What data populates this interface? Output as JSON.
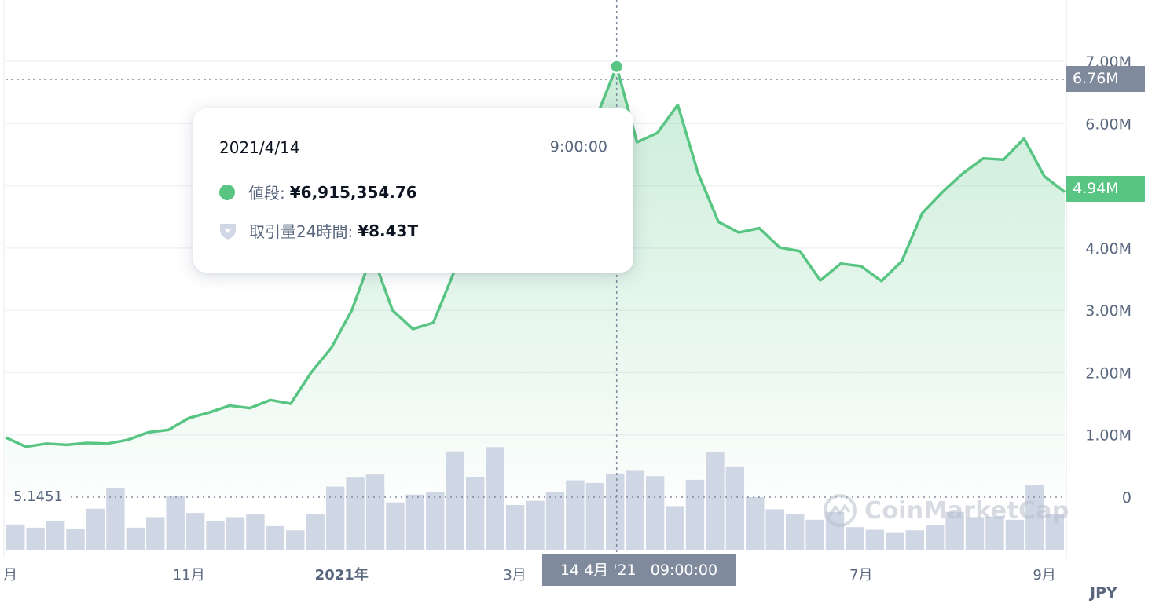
{
  "chart_data": {
    "type": "area",
    "currency": "JPY",
    "y_axis_ticks": [
      "0",
      "1.00M",
      "2.00M",
      "3.00M",
      "4.00M",
      "5.00M",
      "6.00M",
      "7.00M"
    ],
    "ylim": [
      0,
      7300000
    ],
    "x_axis_ticks": [
      {
        "label": "月",
        "bold": false,
        "x": 0
      },
      {
        "label": "11月",
        "bold": false,
        "x": 9
      },
      {
        "label": "2021年",
        "bold": false,
        "x": 16.5
      },
      {
        "label": "3月",
        "bold": false,
        "x": 25
      },
      {
        "label": "7月",
        "bold": false,
        "x": 42
      },
      {
        "label": "9月",
        "bold": false,
        "x": 51
      }
    ],
    "price_series": {
      "name": "値段",
      "x": [
        0,
        1,
        2,
        3,
        4,
        5,
        6,
        7,
        8,
        9,
        10,
        11,
        12,
        13,
        14,
        15,
        16,
        17,
        18,
        19,
        20,
        21,
        22,
        23,
        24,
        25,
        26,
        27,
        28,
        29,
        30,
        31,
        32,
        33,
        34,
        35,
        36,
        37,
        38,
        39,
        40,
        41,
        42,
        43,
        44,
        45,
        46,
        47,
        48,
        49,
        50,
        51,
        52
      ],
      "values": [
        960000,
        810000,
        860000,
        840000,
        870000,
        860000,
        920000,
        1040000,
        1080000,
        1270000,
        1360000,
        1470000,
        1430000,
        1560000,
        1500000,
        2000000,
        2400000,
        3000000,
        3900000,
        3000000,
        2700000,
        2800000,
        3600000,
        4300000,
        5200000,
        5300000,
        5200000,
        5400000,
        6200000,
        6100000,
        6915354,
        5700000,
        5850000,
        6300000,
        5200000,
        4420000,
        4250000,
        4320000,
        4010000,
        3950000,
        3480000,
        3750000,
        3710000,
        3470000,
        3790000,
        4560000,
        4900000,
        5200000,
        5440000,
        5420000,
        5760000,
        5150000,
        4900000
      ],
      "color": "#58c583"
    },
    "volume_series": {
      "name": "取引量24時間",
      "values": [
        0.48,
        0.42,
        0.55,
        0.4,
        0.78,
        1.17,
        0.42,
        0.62,
        1.02,
        0.7,
        0.55,
        0.62,
        0.68,
        0.45,
        0.37,
        0.68,
        1.2,
        1.37,
        1.43,
        0.9,
        1.05,
        1.1,
        1.87,
        1.38,
        1.95,
        0.85,
        0.93,
        1.1,
        1.32,
        1.27,
        1.45,
        1.5,
        1.4,
        0.83,
        1.33,
        1.85,
        1.57,
        1.0,
        0.77,
        0.68,
        0.57,
        0.72,
        0.43,
        0.38,
        0.32,
        0.37,
        0.47,
        0.72,
        0.62,
        0.63,
        0.57,
        1.23,
        0.68
      ],
      "reference_line": 1.0,
      "color": "#cfd6e4"
    },
    "crosshair_index": 30,
    "grid": true
  },
  "tooltip": {
    "date": "2021/4/14",
    "time": "9:00:00",
    "price_label": "値段:",
    "price_value": "¥6,915,354.76",
    "volume_label": "取引量24時間:",
    "volume_value": "¥8.43T"
  },
  "badges": {
    "crosshair_price": "6.76M",
    "current_price": "4.94M",
    "crosshair_date": "14 4月 '21   09:00:00"
  },
  "volume_axis_label": "5.1451",
  "currency_label": "JPY",
  "watermark": "CoinMarketCap",
  "colors": {
    "line": "#58c583",
    "area_top": "#d6f2e2",
    "volume_bar": "#cfd6e4",
    "grid": "#eff2f5",
    "badge_grey": "#808a9d",
    "badge_green": "#58c583"
  }
}
